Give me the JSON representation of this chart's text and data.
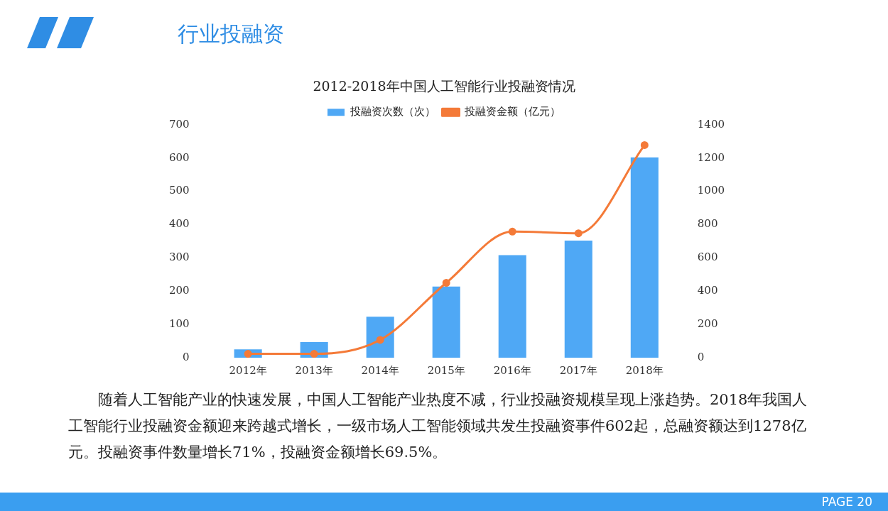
{
  "chart_data": {
    "type": "bar",
    "title": "2012-2018年中国人工智能行业投融资情况",
    "subtitle": "行业投融资",
    "categories": [
      "2012年",
      "2013年",
      "2014年",
      "2015年",
      "2016年",
      "2017年",
      "2018年"
    ],
    "series": [
      {
        "name": "投融资次数（次）",
        "color": "#4fa8f5",
        "values": [
          25,
          47,
          123,
          214,
          308,
          352,
          602
        ]
      },
      {
        "name": "投融资金额（亿元）",
        "type": "line",
        "axis": "y2",
        "color": "#f47a38",
        "values": [
          23,
          23,
          107,
          450,
          758,
          748,
          1278
        ]
      }
    ],
    "ylim": [
      0,
      700
    ],
    "yticks": [
      0,
      100,
      200,
      300,
      400,
      500,
      600,
      700
    ],
    "y2lim": [
      0,
      1400
    ],
    "y2ticks": [
      0,
      200,
      400,
      600,
      800,
      1000,
      1200,
      1400
    ],
    "grid": false,
    "legend": "top",
    "marker": "circle",
    "line_style": "solid",
    "annotations": [
      "随着人工智能产业的快速发展，中国人工智能产业热度不减，行业投融资规模呈现上涨趋势。2018年我国人工智能行业投融资金额迎来跨越式增长，一级市场人工智能领域共发生投融资事件602起，总融资额达到1278亿元。投融资事件数量增长71%，投融资金额增长69.5%。",
      "PAGE 20"
    ]
  }
}
